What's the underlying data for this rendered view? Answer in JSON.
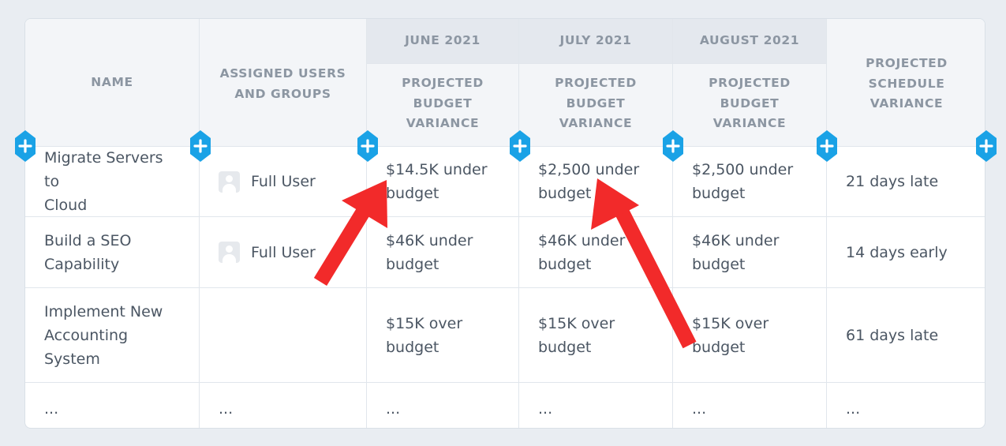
{
  "colors": {
    "page_bg": "#e9edf2",
    "header_bg": "#f3f5f8",
    "month_bg": "#e4e8ee",
    "header_text": "#8c96a2",
    "body_text": "#4b5663",
    "add_button": "#1aa2e6",
    "arrow": "#f22a2a"
  },
  "table": {
    "headers": {
      "name": "NAME",
      "assigned_line1": "ASSIGNED USERS",
      "assigned_line2": "AND GROUPS",
      "months": [
        "JUNE 2021",
        "JULY 2021",
        "AUGUST 2021"
      ],
      "budget_line1": "PROJECTED",
      "budget_line2": "BUDGET",
      "budget_line3": "VARIANCE",
      "schedule_line1": "PROJECTED",
      "schedule_line2": "SCHEDULE",
      "schedule_line3": "VARIANCE"
    },
    "rows": [
      {
        "name_line1": "Migrate Servers to",
        "name_line2": "Cloud",
        "name_line3": "",
        "assigned": "Full User",
        "june_l1": "$14.5K under",
        "june_l2": "budget",
        "july_l1": "$2,500 under",
        "july_l2": "budget",
        "aug_l1": "$2,500 under",
        "aug_l2": "budget",
        "schedule": "21 days late"
      },
      {
        "name_line1": "Build a SEO",
        "name_line2": "Capability",
        "name_line3": "",
        "assigned": "Full User",
        "june_l1": "$46K under",
        "june_l2": "budget",
        "july_l1": "$46K under",
        "july_l2": "budget",
        "aug_l1": "$46K under",
        "aug_l2": "budget",
        "schedule": "14 days early"
      },
      {
        "name_line1": "Implement New",
        "name_line2": "Accounting",
        "name_line3": "System",
        "assigned": "",
        "june_l1": "$15K over",
        "june_l2": "budget",
        "july_l1": "$15K over",
        "july_l2": "budget",
        "aug_l1": "$15K over",
        "aug_l2": "budget",
        "schedule": "61 days late"
      }
    ],
    "ellipsis": "..."
  },
  "add_column_icon": "plus-icon"
}
